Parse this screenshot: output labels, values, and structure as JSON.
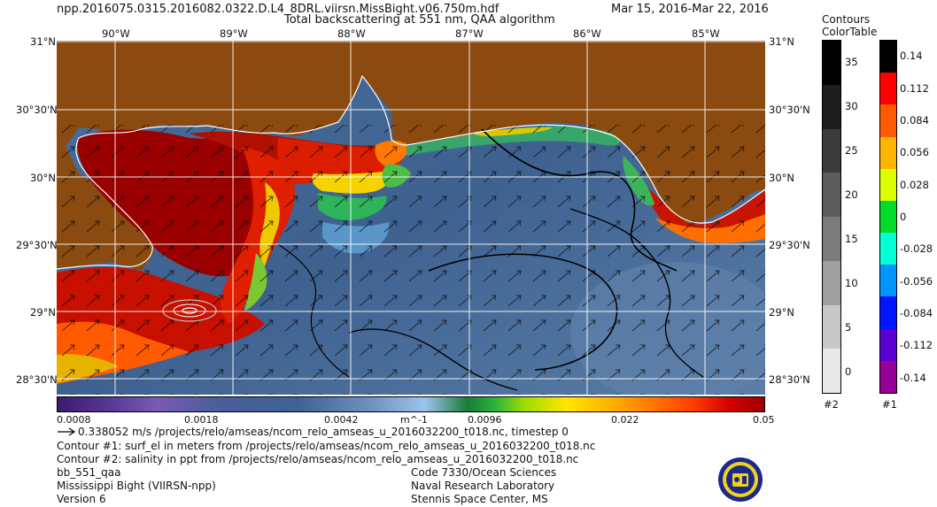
{
  "header": {
    "filename": "npp.2016075.0315.2016082.0322.D.L4_8DRL.viirsn.MissBight.v06.750m.hdf",
    "daterange": "Mar 15, 2016-Mar 22, 2016",
    "product_title": "Total backscattering at 551 nm, QAA algorithm"
  },
  "map": {
    "lon_labels": [
      "90°W",
      "89°W",
      "88°W",
      "87°W",
      "86°W",
      "85°W"
    ],
    "lat_labels": [
      "31°N",
      "30°30'N",
      "30°N",
      "29°30'N",
      "29°N",
      "28°30'N"
    ],
    "land_color": "#8a4a10",
    "water_color": "#3e6190",
    "grid_color": "#ffffff"
  },
  "colorbar": {
    "ticks": [
      "0.0008",
      "0.0018",
      "0.0042",
      "0.0096",
      "0.022",
      "0.05"
    ],
    "unit": "m^-1",
    "scale": "log",
    "range": [
      0.0008,
      0.05
    ]
  },
  "legend_right": {
    "title_line1": "Contours",
    "title_line2": "ColorTable",
    "contour_ticks": [
      "35",
      "30",
      "25",
      "20",
      "15",
      "10",
      "5",
      "0"
    ],
    "contour_colors": [
      "#000000",
      "#1c1c1c",
      "#3b3b3b",
      "#5c5c5c",
      "#7c7c7c",
      "#a0a0a0",
      "#c8c8c8",
      "#e8e8e8"
    ],
    "contour_label": "#2",
    "table_ticks": [
      "0.14",
      "0.112",
      "0.084",
      "0.056",
      "0.028",
      "0",
      "-0.028",
      "-0.056",
      "-0.084",
      "-0.112",
      "-0.14"
    ],
    "table_colors": [
      "#000000",
      "#ff0000",
      "#ff5a00",
      "#ffb400",
      "#dcff00",
      "#00dc28",
      "#00ffd2",
      "#0096ff",
      "#0014ff",
      "#5a00d2",
      "#960096"
    ],
    "table_label": "#1"
  },
  "footer": {
    "vector_text": "0.338052 m/s /projects/relo/amseas/ncom_relo_amseas_u_2016032200_t018.nc, timestep 0",
    "contour1": "Contour #1: surf_el in meters from /projects/relo/amseas/ncom_relo_amseas_u_2016032200_t018.nc",
    "contour2": "Contour #2: salinity in ppt from /projects/relo/amseas/ncom_relo_amseas_u_2016032200_t018.nc",
    "product": "bb_551_qaa",
    "region": "Mississippi Bight (VIIRSN-npp)",
    "version": "Version 6",
    "org1": "Code 7330/Ocean Sciences",
    "org2": "Naval Research Laboratory",
    "org3": "Stennis Space Center, MS"
  }
}
